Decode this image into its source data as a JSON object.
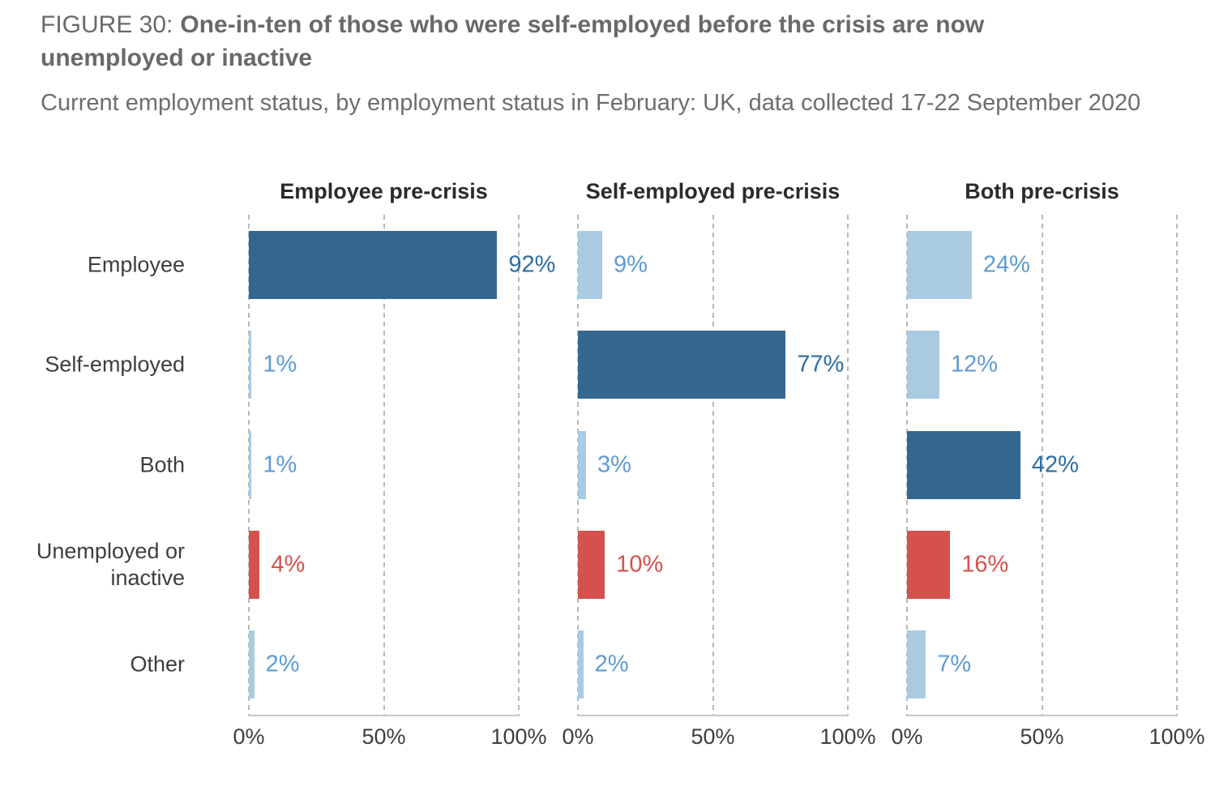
{
  "header": {
    "figure_label": "FIGURE 30:",
    "title": "One-in-ten of those who were self-employed before the crisis are now unemployed or inactive",
    "subtitle": "Current employment status, by employment status in February: UK, data collected 17-22 September 2020"
  },
  "chart_data": {
    "type": "bar",
    "orientation": "horizontal",
    "categories": [
      "Employee",
      "Self-employed",
      "Both",
      "Unemployed or inactive",
      "Other"
    ],
    "x_ticks": [
      "0%",
      "50%",
      "100%"
    ],
    "xlim": [
      0,
      100
    ],
    "grid": "dashed-vertical-at-0-50-100",
    "legend": "none",
    "panels": [
      {
        "title": "Employee pre-crisis",
        "values": [
          92,
          1,
          1,
          4,
          2
        ],
        "labels": [
          "92%",
          "1%",
          "1%",
          "4%",
          "2%"
        ],
        "color_keys": [
          "dark",
          "light",
          "light",
          "red",
          "light"
        ]
      },
      {
        "title": "Self-employed pre-crisis",
        "values": [
          9,
          77,
          3,
          10,
          2
        ],
        "labels": [
          "9%",
          "77%",
          "3%",
          "10%",
          "2%"
        ],
        "color_keys": [
          "light",
          "dark",
          "light",
          "red",
          "light"
        ]
      },
      {
        "title": "Both pre-crisis",
        "values": [
          24,
          12,
          42,
          16,
          7
        ],
        "labels": [
          "24%",
          "12%",
          "42%",
          "16%",
          "7%"
        ],
        "color_keys": [
          "light",
          "light",
          "dark",
          "red",
          "light"
        ]
      }
    ],
    "colors": {
      "dark": "#34678F",
      "light": "#A9CBE2",
      "red": "#D5514D"
    },
    "label_colors": {
      "dark": "#2E6DA0",
      "light": "#5D9BD3",
      "red": "#D5514D"
    },
    "gridline_color": "#B8B8B8",
    "axis_color": "#C6C6C6"
  }
}
